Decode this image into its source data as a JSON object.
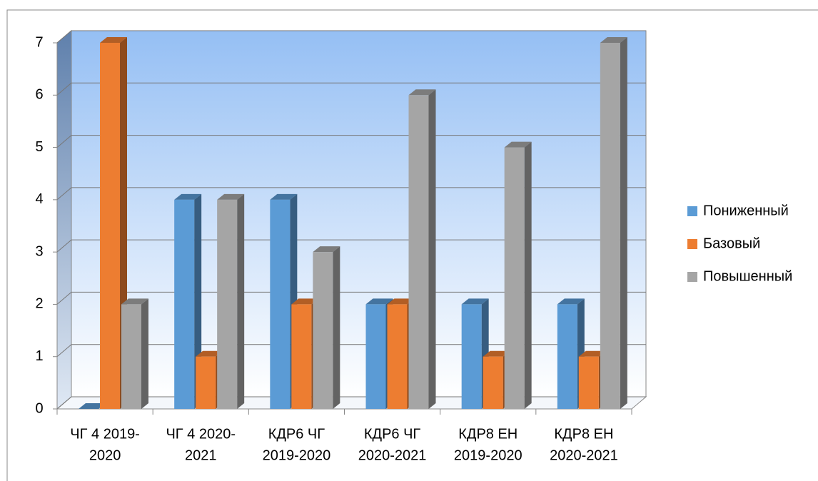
{
  "chart_data": {
    "type": "bar3d",
    "categories": [
      [
        "ЧГ 4  2019-",
        "2020"
      ],
      [
        "ЧГ 4  2020-",
        "2021"
      ],
      [
        "КДР6 ЧГ",
        "2019-2020"
      ],
      [
        "КДР6 ЧГ",
        "2020-2021"
      ],
      [
        "КДР8 ЕН",
        "2019-2020"
      ],
      [
        "КДР8 ЕН",
        "2020-2021"
      ]
    ],
    "series": [
      {
        "name": "Пониженный",
        "color": "#5b9bd5",
        "values": [
          0,
          4,
          4,
          2,
          2,
          2
        ]
      },
      {
        "name": "Базовый",
        "color": "#ed7d31",
        "values": [
          7,
          1,
          2,
          2,
          1,
          1
        ]
      },
      {
        "name": "Повышенный",
        "color": "#a5a5a5",
        "values": [
          2,
          4,
          3,
          6,
          5,
          7
        ]
      }
    ],
    "ylim": [
      0,
      7
    ],
    "yticks": [
      0,
      1,
      2,
      3,
      4,
      5,
      6,
      7
    ],
    "grid": true,
    "legend": "right"
  }
}
